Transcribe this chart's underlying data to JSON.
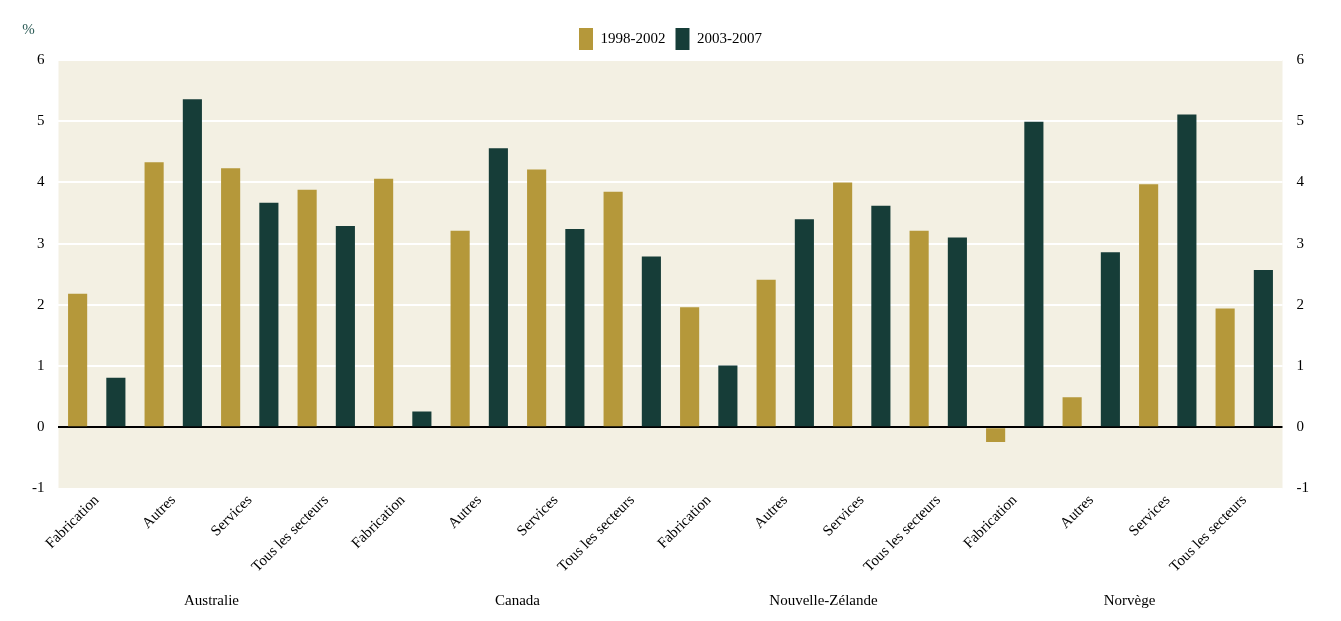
{
  "chart_data": {
    "type": "bar",
    "ylabel": "%",
    "categories": [
      "Fabrication",
      "Autres",
      "Services",
      "Tous les secteurs",
      "Fabrication",
      "Autres",
      "Services",
      "Tous les secteurs",
      "Fabrication",
      "Autres",
      "Services",
      "Tous les secteurs",
      "Fabrication",
      "Autres",
      "Services",
      "Tous les secteurs"
    ],
    "series": [
      {
        "name": "1998-2002",
        "color": "#b5983a",
        "values": [
          2.18,
          4.33,
          4.23,
          3.88,
          4.06,
          3.21,
          4.21,
          3.85,
          1.96,
          2.41,
          4.0,
          3.21,
          -0.24,
          0.49,
          3.97,
          1.94
        ]
      },
      {
        "name": "2003-2007",
        "color": "#163d38",
        "values": [
          0.81,
          5.36,
          3.67,
          3.29,
          0.26,
          4.56,
          3.24,
          2.79,
          1.01,
          3.4,
          3.62,
          3.1,
          4.99,
          2.86,
          5.11,
          2.57
        ]
      }
    ],
    "ylim": [
      -1,
      6
    ],
    "yticks": [
      -1,
      0,
      1,
      2,
      3,
      4,
      5,
      6
    ],
    "y2lim": [
      -1,
      6
    ],
    "y2ticks": [
      -1,
      0,
      1,
      2,
      3,
      4,
      5,
      6
    ],
    "grid": "y",
    "legend": "top",
    "annotations": [
      "Australie",
      "Canada",
      "Nouvelle-Zélande",
      "Norvège"
    ]
  }
}
